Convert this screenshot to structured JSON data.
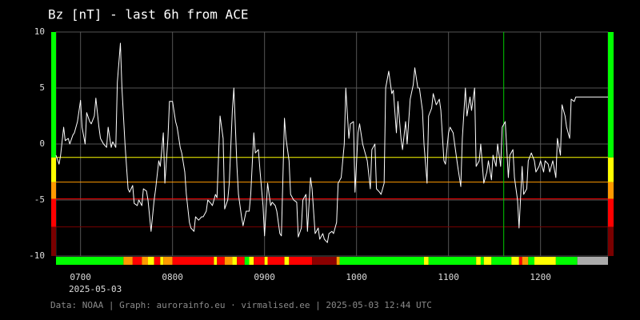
{
  "chart_data": {
    "type": "line",
    "title": "Bz [nT] - last 6h from ACE",
    "date_label": "2025-05-03",
    "footer": "Data: NOAA | Graph: aurorainfo.eu · virmalised.ee | 2025-05-03 12:44 UTC",
    "x": [
      404,
      406,
      407,
      409,
      410,
      412,
      413,
      415,
      416,
      418,
      420,
      421,
      423,
      424,
      426,
      427,
      429,
      430,
      432,
      433,
      435,
      437,
      438,
      440,
      441,
      443,
      444,
      446,
      447,
      449,
      451,
      452,
      454,
      455,
      457,
      458,
      460,
      461,
      463,
      464,
      466,
      468,
      469,
      471,
      472,
      474,
      475,
      477,
      478,
      480,
      482,
      483,
      485,
      486,
      488,
      489,
      491,
      492,
      494,
      495,
      497,
      499,
      500,
      502,
      503,
      505,
      506,
      508,
      509,
      511,
      513,
      514,
      516,
      517,
      519,
      520,
      522,
      523,
      525,
      526,
      528,
      530,
      531,
      533,
      534,
      536,
      537,
      539,
      540,
      542,
      544,
      545,
      547,
      548,
      550,
      551,
      553,
      554,
      556,
      557,
      559,
      561,
      562,
      564,
      565,
      567,
      568,
      570,
      571,
      573,
      575,
      576,
      578,
      579,
      581,
      582,
      584,
      585,
      587,
      588,
      590,
      592,
      593,
      595,
      596,
      598,
      599,
      601,
      602,
      604,
      606,
      607,
      609,
      610,
      612,
      613,
      615,
      616,
      618,
      619,
      621,
      623,
      624,
      626,
      627,
      629,
      630,
      632,
      633,
      635,
      637,
      638,
      640,
      641,
      643,
      644,
      646,
      647,
      649,
      650,
      652,
      654,
      655,
      657,
      658,
      660,
      661,
      663,
      664,
      666,
      668,
      669,
      671,
      672,
      674,
      675,
      677,
      678,
      680,
      681,
      683,
      685,
      686,
      688,
      689,
      691,
      692,
      694,
      695,
      697,
      699,
      700,
      702,
      703,
      705,
      706,
      708,
      709,
      711,
      712,
      714,
      716,
      717,
      719,
      720,
      722,
      723,
      725,
      726,
      728,
      730,
      731,
      733,
      734,
      736,
      737,
      739,
      740,
      742,
      743,
      745,
      764
    ],
    "series": [
      {
        "color": "#ffffff",
        "values": [
          -1.0,
          -1.8,
          -1.0,
          1.5,
          0.3,
          0.5,
          0.0,
          0.8,
          1.0,
          2.0,
          3.9,
          1.5,
          0.0,
          2.8,
          2.0,
          1.8,
          2.5,
          4.1,
          1.5,
          0.5,
          0.0,
          -0.3,
          1.5,
          -0.3,
          0.2,
          -0.3,
          5.5,
          9.0,
          5.0,
          0.0,
          -4.0,
          -4.3,
          -3.7,
          -5.3,
          -5.5,
          -5.0,
          -5.5,
          -4.0,
          -4.2,
          -5.0,
          -7.8,
          -5.0,
          -4.0,
          -1.5,
          -2.0,
          1.0,
          -3.5,
          0.5,
          3.8,
          3.8,
          2.0,
          1.5,
          -0.3,
          -0.8,
          -2.5,
          -4.5,
          -7.0,
          -7.5,
          -7.8,
          -6.5,
          -6.8,
          -6.5,
          -6.5,
          -6.0,
          -5.0,
          -5.3,
          -5.5,
          -4.5,
          -4.8,
          2.5,
          0.5,
          -5.8,
          -5.0,
          -3.5,
          3.0,
          5.0,
          -2.0,
          -4.5,
          -6.5,
          -7.3,
          -6.0,
          -6.0,
          -4.5,
          1.0,
          -0.8,
          -0.5,
          -2.3,
          -5.5,
          -8.2,
          -3.5,
          -5.5,
          -5.2,
          -5.5,
          -6.0,
          -8.0,
          -8.2,
          2.3,
          0.5,
          -1.5,
          -4.5,
          -5.0,
          -5.2,
          -8.3,
          -7.5,
          -5.0,
          -4.5,
          -7.8,
          -3.0,
          -4.0,
          -8.0,
          -7.5,
          -8.5,
          -8.0,
          -8.5,
          -8.8,
          -8.0,
          -7.8,
          -8.0,
          -7.0,
          -3.5,
          -3.0,
          0.0,
          5.0,
          0.5,
          1.8,
          2.0,
          -4.3,
          1.0,
          1.8,
          0.0,
          -1.0,
          -1.5,
          -4.0,
          -0.5,
          0.0,
          -4.0,
          -4.3,
          -4.5,
          -3.5,
          5.0,
          6.5,
          4.5,
          4.8,
          1.0,
          3.8,
          0.5,
          -0.5,
          2.0,
          0.0,
          4.0,
          5.3,
          6.8,
          5.0,
          5.0,
          3.0,
          0.0,
          -3.5,
          2.5,
          3.2,
          4.5,
          3.5,
          4.0,
          3.0,
          -1.5,
          -1.8,
          1.0,
          1.5,
          1.0,
          0.0,
          -2.0,
          -3.8,
          0.5,
          5.0,
          2.5,
          4.2,
          3.0,
          5.0,
          -2.0,
          -1.5,
          0.0,
          -3.5,
          -2.5,
          -1.5,
          -3.2,
          -1.0,
          -2.0,
          0.0,
          -2.0,
          1.5,
          2.0,
          -3.0,
          -1.0,
          -0.5,
          -3.0,
          -5.0,
          -7.5,
          -2.0,
          -4.5,
          -4.0,
          -1.5,
          -0.8,
          -1.5,
          -2.5,
          -2.0,
          -1.5,
          -2.5,
          -1.5,
          -1.8,
          -2.5,
          -1.5,
          -3.0,
          0.5,
          -1.0,
          3.5,
          2.5,
          1.5,
          0.5,
          4.0,
          3.8,
          4.2,
          4.2,
          4.2
        ]
      }
    ],
    "xlim": [
      404,
      764
    ],
    "xticks": [
      {
        "value": 420,
        "label": "0700"
      },
      {
        "value": 480,
        "label": "0800"
      },
      {
        "value": 540,
        "label": "0900"
      },
      {
        "value": 600,
        "label": "1000"
      },
      {
        "value": 660,
        "label": "1100"
      },
      {
        "value": 720,
        "label": "1200"
      }
    ],
    "ylim": [
      -10,
      10
    ],
    "yticks": [
      10,
      5,
      0,
      -5,
      -10
    ],
    "grid": true,
    "top_color": "#00ff00",
    "levels": [
      {
        "value": -1.2,
        "color": "#ffff00"
      },
      {
        "value": -3.4,
        "color": "#ff9900"
      },
      {
        "value": -4.9,
        "color": "#ff0000"
      },
      {
        "value": -7.4,
        "color": "#7a0000"
      }
    ],
    "marker_x": {
      "x": 696,
      "color": "#00c800"
    },
    "status_strip": {
      "x": [
        404,
        448,
        454,
        460,
        464,
        468,
        472,
        474,
        480,
        507,
        509,
        514,
        519,
        522,
        527,
        530,
        533,
        540,
        542,
        553,
        556,
        571,
        587,
        589,
        644,
        647,
        678,
        681,
        683,
        688,
        701,
        706,
        708,
        712,
        716,
        730,
        744
      ],
      "colors": [
        "#00ff00",
        "#ff9900",
        "#ff0000",
        "#ff9900",
        "#ffff00",
        "#ff0000",
        "#ffff00",
        "#ff9900",
        "#ff0000",
        "#ffff00",
        "#ff0000",
        "#ff9900",
        "#ffff00",
        "#ff0000",
        "#00ff00",
        "#ffff00",
        "#ff0000",
        "#ffff00",
        "#ff0000",
        "#ffff00",
        "#ff0000",
        "#8b0000",
        "#ff9900",
        "#00ff00",
        "#ffff00",
        "#00ff00",
        "#ffff00",
        "#00ff00",
        "#ffff00",
        "#00ff00",
        "#ffff00",
        "#ff0000",
        "#ff9900",
        "#00ff00",
        "#ffff00",
        "#00ff00",
        "#aaaaaa"
      ]
    }
  }
}
